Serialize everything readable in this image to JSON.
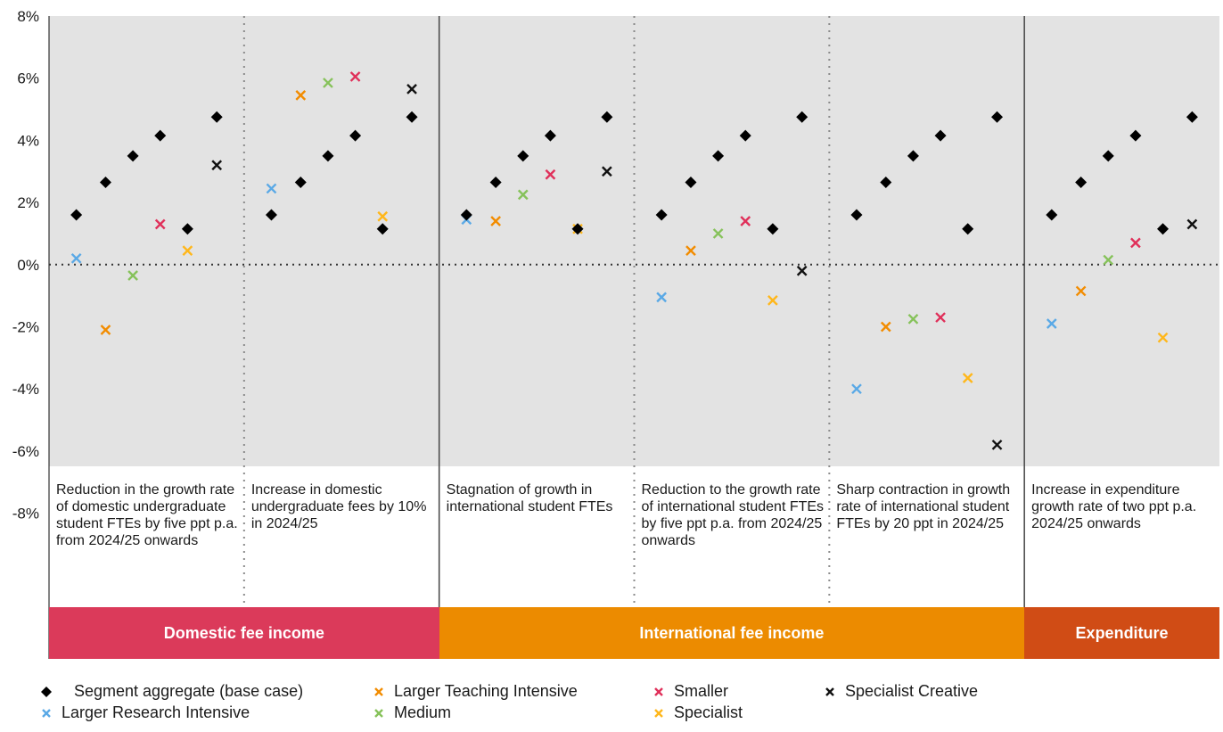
{
  "chart_data": {
    "type": "scatter",
    "title": "",
    "xlabel": "",
    "ylabel": "",
    "ylim": [
      -8,
      8
    ],
    "y_ticks": [
      8,
      6,
      4,
      2,
      0,
      -2,
      -4,
      -6,
      -8
    ],
    "y_tick_labels": [
      "8%",
      "6%",
      "4%",
      "2%",
      "0%",
      "-2%",
      "-4%",
      "-6%",
      "-8%"
    ],
    "grid": false,
    "legend_position": "bottom",
    "panels": [
      {
        "description": "Reduction in the growth rate of domestic undergraduate student FTEs by five ppt p.a. from 2024/25 onwards",
        "category": "domestic"
      },
      {
        "description": "Increase in domestic undergraduate fees by 10% in 2024/25",
        "category": "domestic"
      },
      {
        "description": "Stagnation of growth in international student FTEs",
        "category": "international"
      },
      {
        "description": "Reduction to the growth rate of international student FTEs by five ppt p.a. from 2024/25 onwards",
        "category": "international"
      },
      {
        "description": "Sharp contraction in growth rate of international student FTEs by 20 ppt in 2024/25",
        "category": "international"
      },
      {
        "description": "Increase in expenditure growth rate of two ppt p.a. 2024/25 onwards",
        "category": "expenditure"
      }
    ],
    "categories_bar": [
      {
        "key": "domestic",
        "label": "Domestic fee income",
        "color": "#db3a5a"
      },
      {
        "key": "international",
        "label": "International fee income",
        "color": "#ec8b00"
      },
      {
        "key": "expenditure",
        "label": "Expenditure",
        "color": "#d04c15"
      }
    ],
    "base_case": {
      "name": "Segment aggregate (base case)",
      "color": "#000000",
      "marker": "diamond",
      "values": [
        1.6,
        2.65,
        3.5,
        4.15,
        1.15,
        4.75
      ]
    },
    "series": [
      {
        "name": "Larger Research Intensive",
        "color": "#5aa9e6",
        "values": [
          0.2,
          2.45,
          1.45,
          -1.05,
          -4.0,
          -1.9
        ]
      },
      {
        "name": "Larger Teaching Intensive",
        "color": "#f28c00",
        "values": [
          -2.1,
          5.45,
          1.4,
          0.45,
          -2.0,
          -0.85
        ]
      },
      {
        "name": "Medium",
        "color": "#86c25a",
        "values": [
          -0.35,
          5.85,
          2.25,
          1.0,
          -1.75,
          0.15
        ]
      },
      {
        "name": "Smaller",
        "color": "#e0305a",
        "values": [
          1.3,
          6.05,
          2.9,
          1.4,
          -1.7,
          0.7
        ]
      },
      {
        "name": "Specialist",
        "color": "#ffb71b",
        "values": [
          0.45,
          1.55,
          1.15,
          -1.15,
          -3.65,
          -2.35
        ]
      },
      {
        "name": "Specialist Creative",
        "color": "#111111",
        "values": [
          3.2,
          5.65,
          3.0,
          -0.2,
          -5.8,
          1.3
        ]
      }
    ]
  }
}
